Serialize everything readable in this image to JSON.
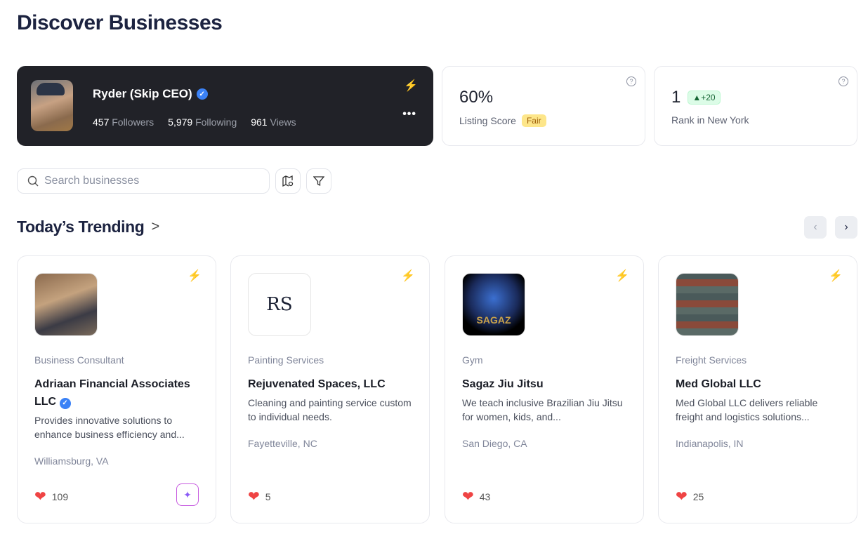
{
  "page_title": "Discover Businesses",
  "profile": {
    "name": "Ryder (Skip CEO)",
    "verified": true,
    "followers": "457",
    "followers_label": "Followers",
    "following": "5,979",
    "following_label": "Following",
    "views": "961",
    "views_label": "Views",
    "more": "•••"
  },
  "listing_score": {
    "value": "60%",
    "label": "Listing Score",
    "badge": "Fair",
    "help": "?"
  },
  "rank": {
    "value": "1",
    "change": "▲+20",
    "label": "Rank in New York",
    "help": "?"
  },
  "search": {
    "placeholder": "Search businesses"
  },
  "trending": {
    "title": "Today’s Trending",
    "chevron": ">",
    "prev": "‹",
    "next": "›"
  },
  "cards": [
    {
      "category": "Business Consultant",
      "name": "Adriaan Financial Associates LLC",
      "verified": true,
      "description": "Provides innovative solutions to enhance business efficiency and...",
      "location": "Williamsburg, VA",
      "likes": "109",
      "has_ai_button": true
    },
    {
      "category": "Painting Services",
      "name": "Rejuvenated Spaces, LLC",
      "description": "Cleaning and painting service custom to individual needs.",
      "location": "Fayetteville, NC",
      "likes": "5",
      "logo_text": "RS"
    },
    {
      "category": "Gym",
      "name": "Sagaz Jiu Jitsu",
      "description": "We teach inclusive Brazilian Jiu Jitsu for women, kids, and...",
      "location": "San Diego, CA",
      "likes": "43",
      "logo_text": "SAGAZ"
    },
    {
      "category": "Freight Services",
      "name": "Med Global LLC",
      "description": "Med Global LLC delivers reliable freight and logistics solutions...",
      "location": "Indianapolis, IN",
      "likes": "25"
    }
  ],
  "colors": {
    "profile_bg": "#212228",
    "verified": "#3b82f6",
    "heart": "#ef4444",
    "fair_badge": "#fde68a",
    "rank_badge": "#dcfce7"
  }
}
